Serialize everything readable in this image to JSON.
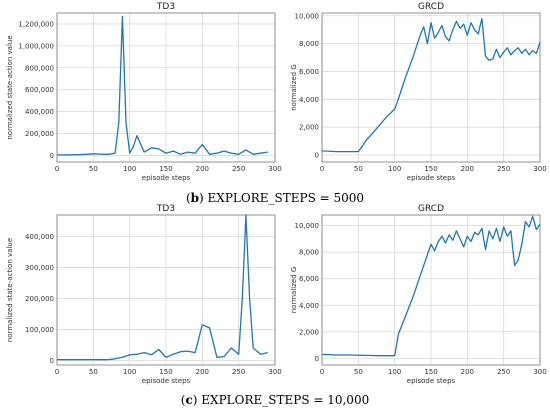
{
  "accent_color": "#1f77b4",
  "captions": [
    {
      "id": "b",
      "letter": "b",
      "text": "EXPLORE_STEPS  = 5000"
    },
    {
      "id": "c",
      "letter": "c",
      "text": "EXPLORE_STEPS  = 10,000"
    }
  ],
  "chart_data": [
    {
      "id": "td3_b",
      "type": "line",
      "title": "TD3",
      "xlabel": "episode steps",
      "ylabel": "normalized state-action value",
      "xlim": [
        0,
        300
      ],
      "ylim": [
        -60000,
        1300000
      ],
      "xticks": [
        0,
        50,
        100,
        150,
        200,
        250,
        300
      ],
      "xtick_labels": [
        "0",
        "50",
        "100",
        "150",
        "200",
        "250",
        "300"
      ],
      "yticks": [
        0,
        200000,
        400000,
        600000,
        800000,
        1000000,
        1200000
      ],
      "ytick_labels": [
        "0",
        "200,000",
        "400,000",
        "600,000",
        "800,000",
        "1,000,000",
        "1,200,000"
      ],
      "grid": true,
      "series": [
        {
          "x": [
            0,
            10,
            20,
            30,
            40,
            50,
            60,
            70,
            80,
            85,
            90,
            95,
            100,
            105,
            110,
            120,
            130,
            140,
            150,
            160,
            170,
            180,
            190,
            200,
            210,
            220,
            230,
            240,
            250,
            260,
            270,
            280,
            290
          ],
          "y": [
            5000,
            5000,
            6000,
            8000,
            10000,
            15000,
            12000,
            10000,
            20000,
            300000,
            1270000,
            300000,
            20000,
            80000,
            180000,
            30000,
            70000,
            60000,
            20000,
            40000,
            10000,
            30000,
            20000,
            100000,
            10000,
            20000,
            40000,
            20000,
            10000,
            50000,
            10000,
            20000,
            30000
          ]
        }
      ]
    },
    {
      "id": "grcd_b",
      "type": "line",
      "title": "GRCD",
      "xlabel": "episode steps",
      "ylabel": "normalized  G",
      "xlim": [
        0,
        300
      ],
      "ylim": [
        -500,
        10200
      ],
      "xticks": [
        0,
        50,
        100,
        150,
        200,
        250,
        300
      ],
      "xtick_labels": [
        "0",
        "50",
        "100",
        "150",
        "200",
        "250",
        "300"
      ],
      "yticks": [
        0,
        2000,
        4000,
        6000,
        8000,
        10000
      ],
      "ytick_labels": [
        "0",
        "2,000",
        "4,000",
        "6,000",
        "8,000",
        "10,000"
      ],
      "grid": true,
      "series": [
        {
          "x": [
            0,
            20,
            40,
            50,
            55,
            60,
            70,
            80,
            90,
            100,
            105,
            110,
            115,
            120,
            125,
            130,
            135,
            140,
            145,
            150,
            155,
            160,
            165,
            170,
            175,
            180,
            185,
            190,
            195,
            200,
            205,
            210,
            215,
            220,
            225,
            230,
            235,
            240,
            245,
            250,
            255,
            260,
            265,
            270,
            275,
            280,
            285,
            290,
            295,
            300
          ],
          "y": [
            300,
            250,
            250,
            250,
            600,
            1000,
            1600,
            2200,
            2800,
            3300,
            4000,
            4800,
            5600,
            6300,
            7000,
            7800,
            8600,
            9200,
            8000,
            9500,
            8400,
            8800,
            9300,
            8500,
            8200,
            9000,
            9600,
            9100,
            9400,
            8600,
            9500,
            9000,
            8700,
            9800,
            7100,
            6800,
            6900,
            7600,
            7000,
            7400,
            7700,
            7200,
            7500,
            7700,
            7300,
            7600,
            7200,
            7500,
            7300,
            8100
          ]
        }
      ]
    },
    {
      "id": "td3_c",
      "type": "line",
      "title": "TD3",
      "xlabel": "episode steps",
      "ylabel": "normalized state-action value",
      "xlim": [
        0,
        300
      ],
      "ylim": [
        -15000,
        470000
      ],
      "xticks": [
        0,
        50,
        100,
        150,
        200,
        250,
        300
      ],
      "xtick_labels": [
        "0",
        "50",
        "100",
        "150",
        "200",
        "250",
        "300"
      ],
      "yticks": [
        0,
        100000,
        200000,
        300000,
        400000
      ],
      "ytick_labels": [
        "0",
        "100,000",
        "200,000",
        "300,000",
        "400,000"
      ],
      "grid": true,
      "series": [
        {
          "x": [
            0,
            10,
            20,
            30,
            40,
            50,
            60,
            70,
            80,
            90,
            100,
            110,
            120,
            130,
            140,
            150,
            160,
            170,
            180,
            190,
            200,
            210,
            220,
            230,
            240,
            250,
            255,
            260,
            265,
            270,
            280,
            290
          ],
          "y": [
            2000,
            2000,
            2000,
            2000,
            2000,
            2000,
            2000,
            2000,
            5000,
            10000,
            18000,
            20000,
            25000,
            18000,
            35000,
            10000,
            20000,
            28000,
            30000,
            25000,
            115000,
            105000,
            10000,
            12000,
            40000,
            20000,
            200000,
            470000,
            200000,
            40000,
            20000,
            25000
          ]
        }
      ]
    },
    {
      "id": "grcd_c",
      "type": "line",
      "title": "GRCD",
      "xlabel": "episode steps",
      "ylabel": "normalized  G",
      "xlim": [
        0,
        300
      ],
      "ylim": [
        -500,
        10800
      ],
      "xticks": [
        0,
        50,
        100,
        150,
        200,
        250,
        300
      ],
      "xtick_labels": [
        "0",
        "50",
        "100",
        "150",
        "200",
        "250",
        "300"
      ],
      "yticks": [
        0,
        2000,
        4000,
        6000,
        8000,
        10000
      ],
      "ytick_labels": [
        "0",
        "2,000",
        "4,000",
        "6,000",
        "8,000",
        "10,000"
      ],
      "grid": true,
      "series": [
        {
          "x": [
            0,
            20,
            40,
            60,
            80,
            100,
            105,
            110,
            115,
            120,
            125,
            130,
            135,
            140,
            145,
            150,
            155,
            160,
            165,
            170,
            175,
            180,
            185,
            190,
            195,
            200,
            205,
            210,
            215,
            220,
            225,
            230,
            235,
            240,
            245,
            250,
            255,
            260,
            265,
            270,
            275,
            280,
            285,
            290,
            295,
            300
          ],
          "y": [
            300,
            250,
            250,
            220,
            200,
            200,
            1800,
            2500,
            3200,
            3900,
            4600,
            5400,
            6200,
            7000,
            7800,
            8600,
            8100,
            8800,
            9200,
            8700,
            9300,
            8900,
            9600,
            9000,
            8400,
            9200,
            8800,
            9500,
            9300,
            9800,
            8200,
            9600,
            9000,
            9800,
            8800,
            9900,
            9200,
            9600,
            7000,
            7400,
            8600,
            10300,
            9900,
            10700,
            9700,
            10100
          ]
        }
      ]
    }
  ]
}
